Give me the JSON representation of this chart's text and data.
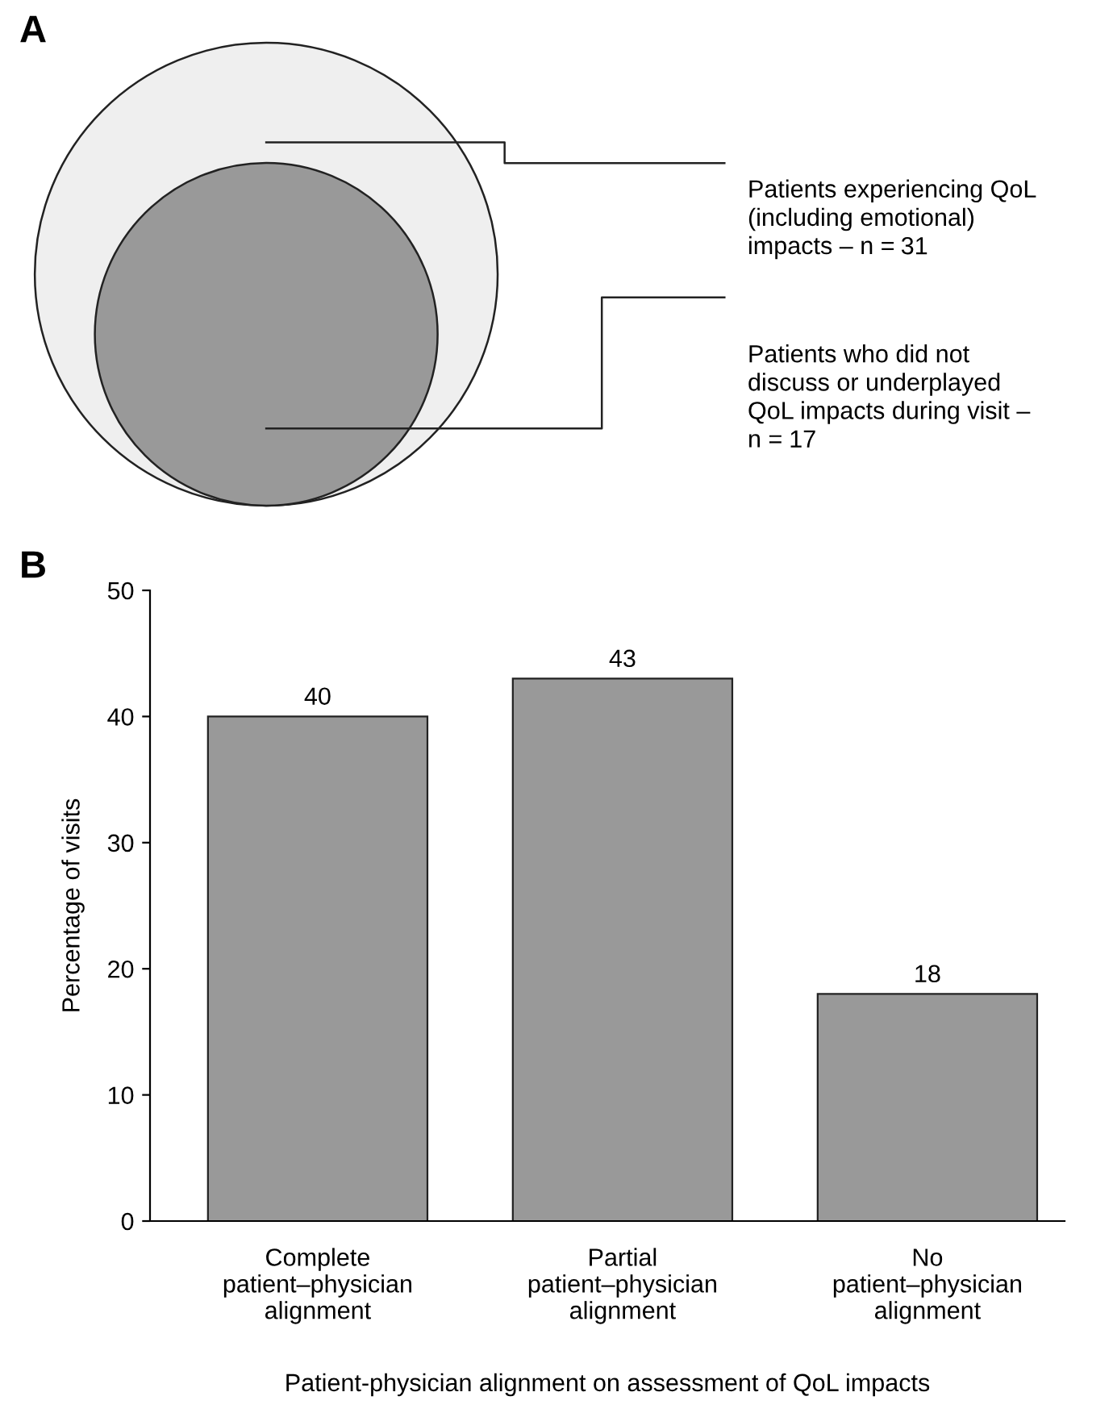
{
  "chart_data": [
    {
      "type": "other",
      "title": "A",
      "categories": [
        "Patients experiencing QoL\n(including emotional)\nimpacts – n =",
        "Patients who did not\ndiscuss or underplayed\nQoL impacts during visit –\nn ="
      ],
      "values": [
        31,
        17
      ],
      "data_labels": true,
      "colors": [
        "#efefef",
        "#999999"
      ]
    },
    {
      "type": "bar",
      "title": "B",
      "categories": [
        "Complete\npatient–physician\nalignment",
        "Partial\npatient–physician\nalignment",
        "No\npatient–physician\nalignment"
      ],
      "values": [
        40,
        43,
        18
      ],
      "color": "#999999",
      "xlabel": "Patient-physician alignment on assessment of QoL impacts",
      "ylabel": "Percentage of visits",
      "ylim": [
        0,
        50
      ],
      "yticks": [
        0,
        10,
        20,
        30,
        40,
        50
      ],
      "data_labels": true,
      "grid": false,
      "legend": false
    }
  ]
}
